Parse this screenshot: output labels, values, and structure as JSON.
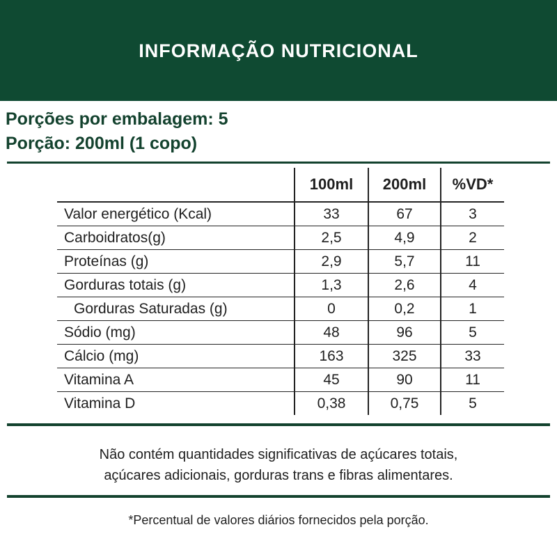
{
  "title": "INFORMAÇÃO NUTRICIONAL",
  "servings_per_package": "Porções por embalagem: 5",
  "serving_size": "Porção: 200ml (1 copo)",
  "table": {
    "headers": [
      "",
      "100ml",
      "200ml",
      "%VD*"
    ],
    "rows": [
      {
        "name": "Valor energético (Kcal)",
        "v100": "33",
        "v200": "67",
        "vd": "3"
      },
      {
        "name": "Carboidratos(g)",
        "v100": "2,5",
        "v200": "4,9",
        "vd": "2"
      },
      {
        "name": "Proteínas (g)",
        "v100": "2,9",
        "v200": "5,7",
        "vd": "11"
      },
      {
        "name": "Gorduras totais (g)",
        "v100": "1,3",
        "v200": "2,6",
        "vd": "4"
      },
      {
        "name": "Gorduras Saturadas (g)",
        "v100": "0",
        "v200": "0,2",
        "vd": "1"
      },
      {
        "name": "Sódio (mg)",
        "v100": "48",
        "v200": "96",
        "vd": "5"
      },
      {
        "name": "Cálcio (mg)",
        "v100": "163",
        "v200": "325",
        "vd": "33"
      },
      {
        "name": "Vitamina A",
        "v100": "45",
        "v200": "90",
        "vd": "11"
      },
      {
        "name": "Vitamina D",
        "v100": "0,38",
        "v200": "0,75",
        "vd": "5"
      }
    ]
  },
  "note_line1": "Não contém quantidades significativas de açúcares totais,",
  "note_line2": "açúcares adicionais, gorduras trans e fibras alimentares.",
  "footnote": "*Percentual de valores diários fornecidos pela porção.",
  "colors": {
    "brand_green": "#0f4a32",
    "text_green": "#13422e"
  }
}
